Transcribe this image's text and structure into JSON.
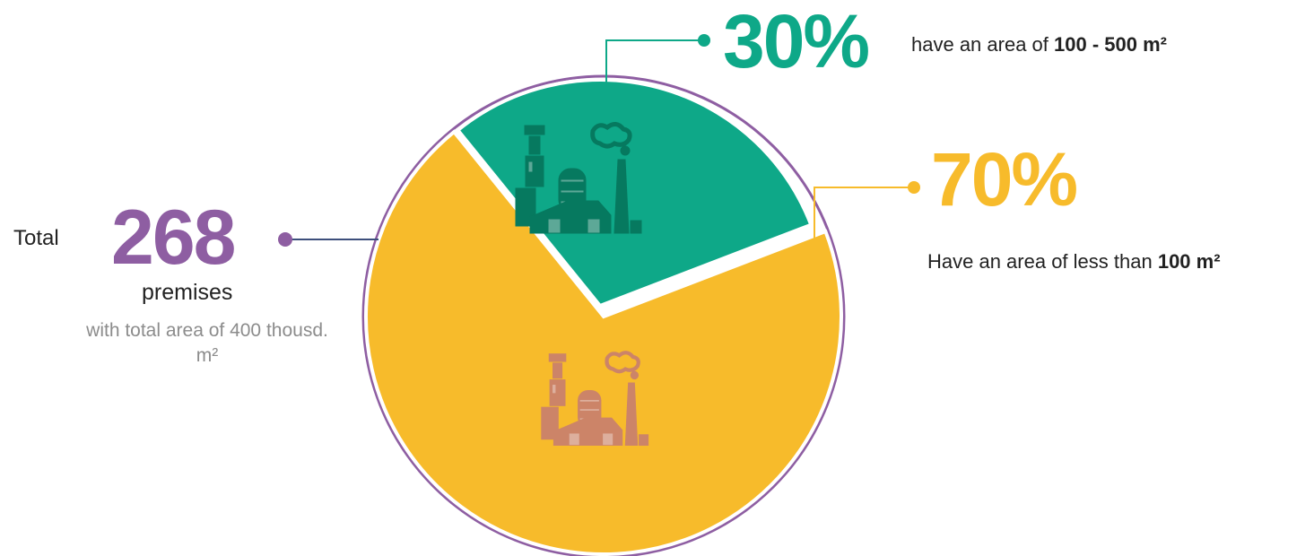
{
  "total": {
    "prefix": "Total",
    "value": "268",
    "unit": "premises",
    "note": "with total area of 400 thousd. m²"
  },
  "colors": {
    "green": "#0ea888",
    "yellow": "#f7bb2b",
    "purple": "#8e5ea2",
    "navy": "#3d4f7c",
    "icon_green": "#06795f",
    "icon_yellow": "#cc8468"
  },
  "chart_data": {
    "type": "pie",
    "categories": [
      "100 - 500 m²",
      "less than 100 m²"
    ],
    "values": [
      30,
      70
    ],
    "slices": [
      {
        "value": 30,
        "label": "30%",
        "text": "have an area of ",
        "bold": "100 - 500 m²",
        "color": "#0ea888",
        "icon": "factory-icon"
      },
      {
        "value": 70,
        "label": "70%",
        "text": "Have an area of less than ",
        "bold": "100 m²",
        "color": "#f7bb2b",
        "icon": "factory-icon"
      }
    ]
  }
}
